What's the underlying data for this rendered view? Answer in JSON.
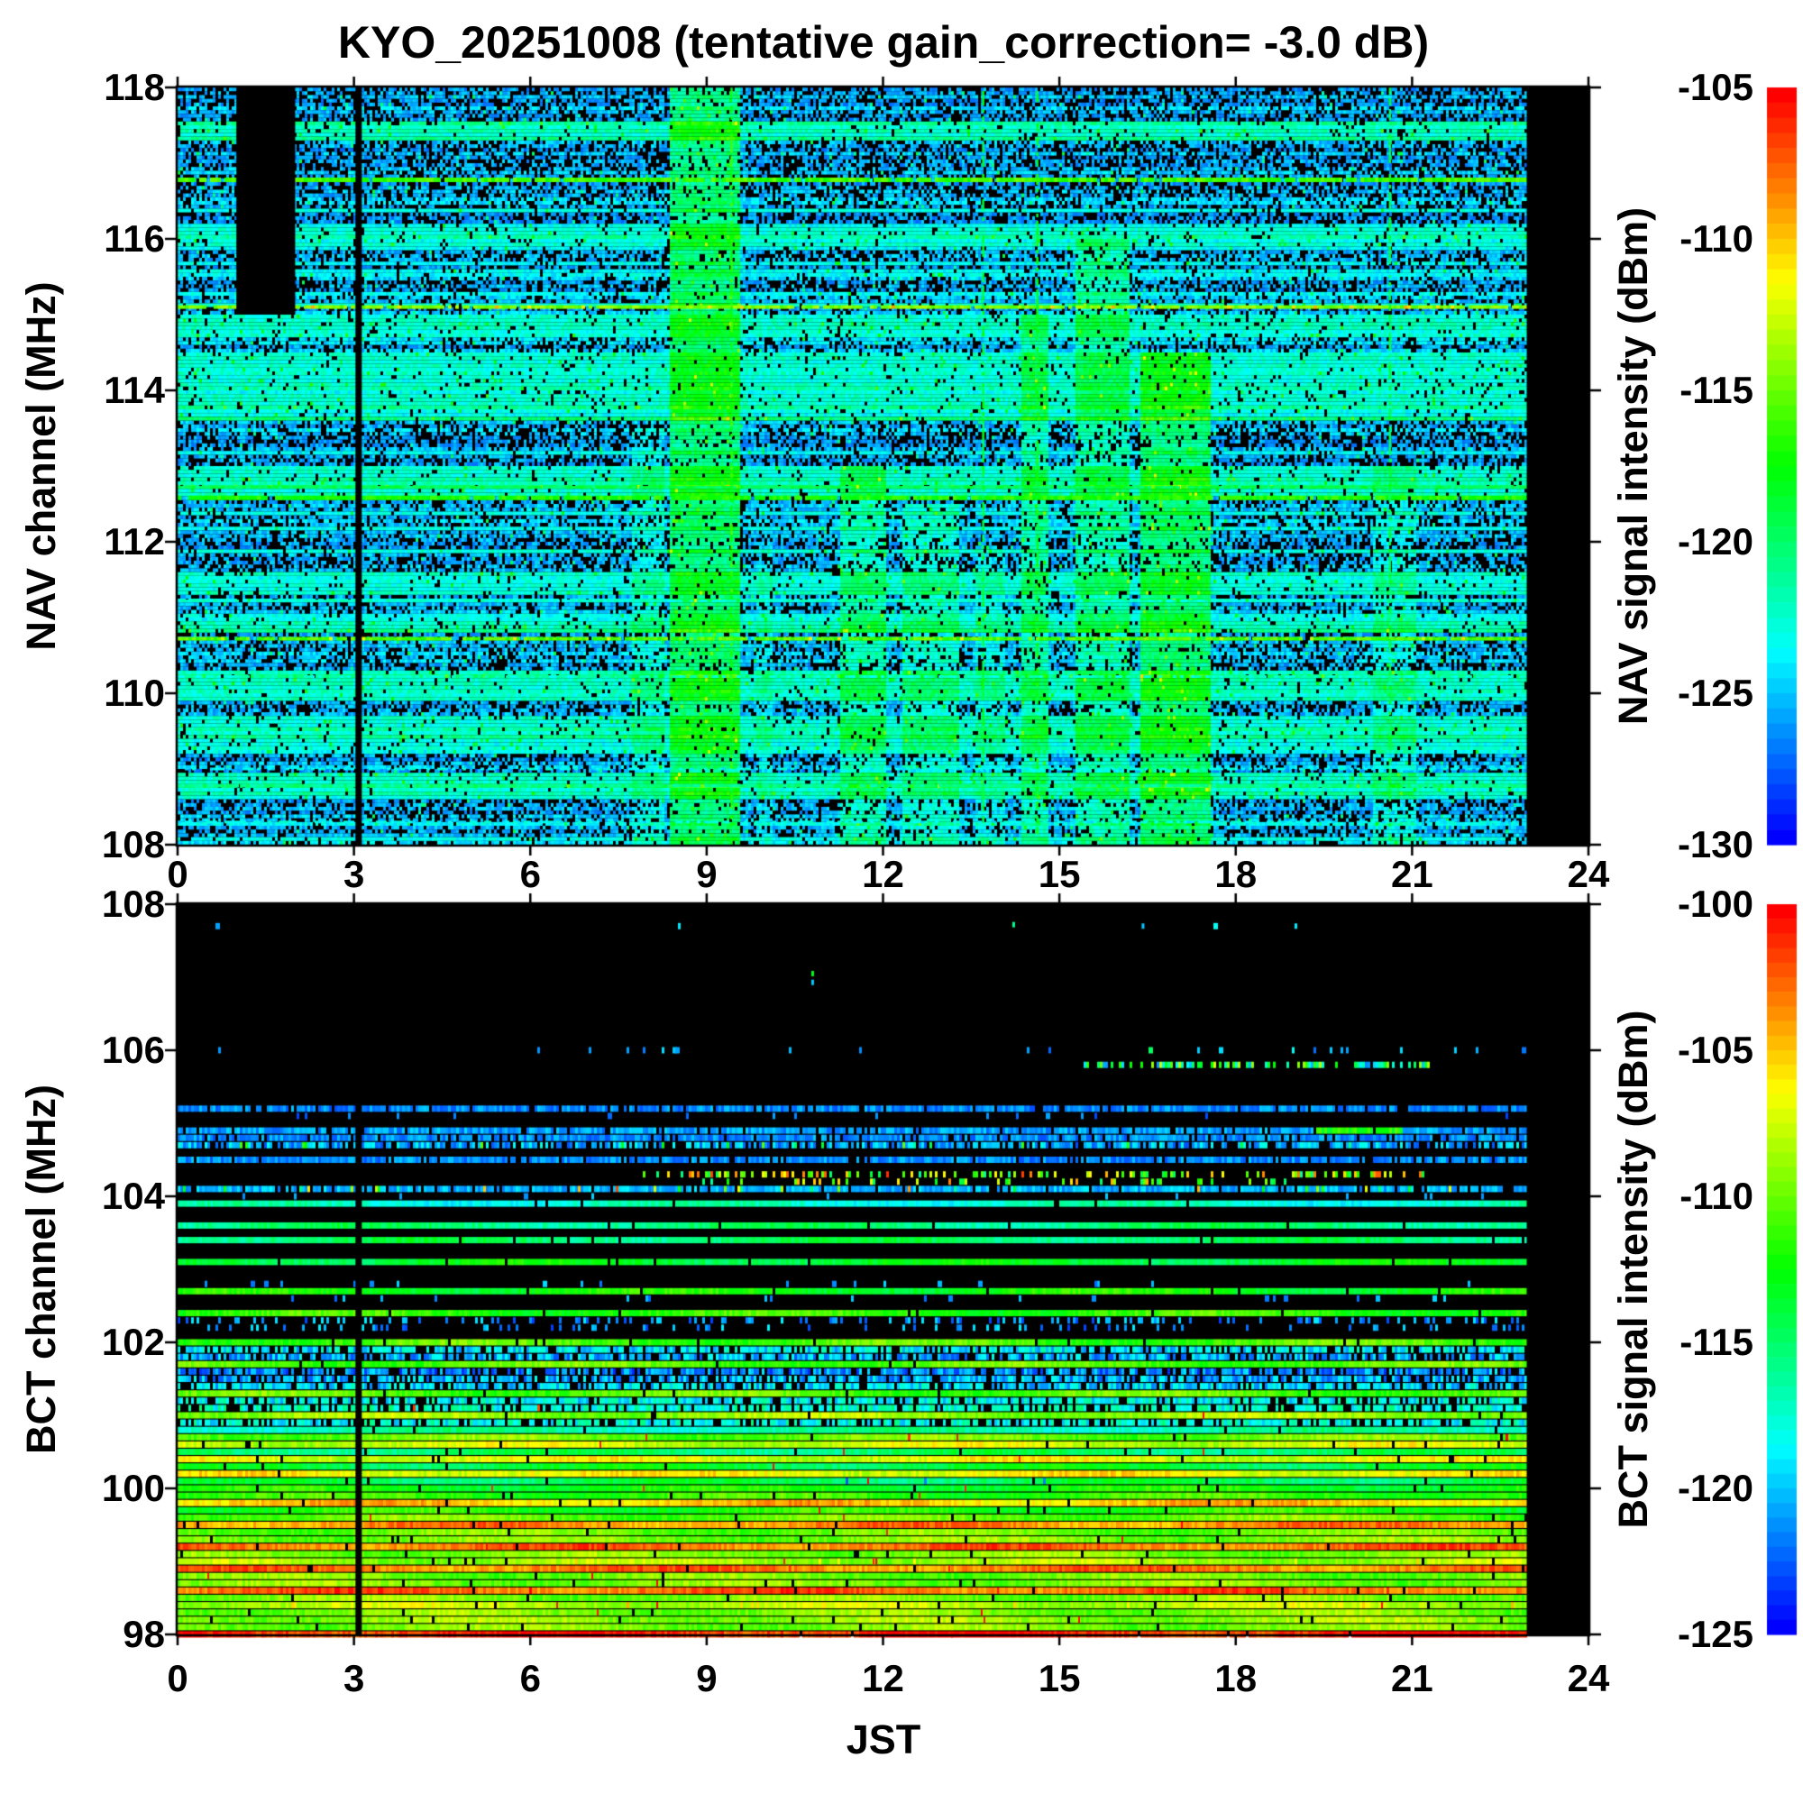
{
  "figure": {
    "title": "KYO_20251008 (tentative gain_correction= -3.0 dB)",
    "background": "#ffffff"
  },
  "chart_data": [
    {
      "type": "heatmap",
      "name": "NAV band spectrogram",
      "title": "KYO_20251008 (tentative gain_correction= -3.0 dB)",
      "xlabel": "",
      "ylabel": "NAV channel (MHz)",
      "x": {
        "min": 0,
        "max": 24,
        "ticks": [
          0,
          3,
          6,
          9,
          12,
          15,
          18,
          21,
          24
        ],
        "tick_labels": [
          "0",
          "3",
          "6",
          "9",
          "12",
          "15",
          "18",
          "21",
          "24"
        ]
      },
      "y": {
        "min": 108,
        "max": 118,
        "ticks": [
          118,
          116,
          114,
          112,
          110,
          108
        ],
        "tick_labels": [
          "118",
          "116",
          "114",
          "112",
          "110",
          "108"
        ]
      },
      "colorbar": {
        "label": "NAV signal intensity (dBm)",
        "max": -105,
        "min": -130,
        "ticks": [
          -105,
          -110,
          -115,
          -120,
          -125,
          -130
        ],
        "tick_labels": [
          "-105",
          "-110",
          "-115",
          "-120",
          "-125",
          "-130"
        ],
        "colormap": "rainbow",
        "high_color": "#ff0000",
        "low_color": "#0000ff"
      },
      "background_noise_dbm": [
        -130,
        -124
      ],
      "data_start_hour": 0,
      "data_end_hour": 22.95,
      "gap_hour": 3.08,
      "black_block": {
        "t0": 1.0,
        "t1": 2.0,
        "f0": 115.0,
        "f1": 118.0
      },
      "bright_lines": [
        {
          "f": 116.78,
          "v": -116.0,
          "h": 5,
          "d": 0.93
        },
        {
          "f": 115.1,
          "v": -114.5,
          "h": 4,
          "d": 0.93,
          "sp": {
            "d": 0.06,
            "vmin": -111,
            "vmax": -109
          }
        },
        {
          "f": 112.72,
          "v": -119.5,
          "h": 3,
          "d": 0.9
        },
        {
          "f": 112.58,
          "v": -117.0,
          "h": 5,
          "d": 0.93
        },
        {
          "f": 111.22,
          "v": -122.5,
          "h": 3,
          "d": 0.7
        },
        {
          "f": 110.72,
          "v": -115.5,
          "h": 4,
          "d": 0.93,
          "sp": {
            "d": 0.05,
            "vmin": -113,
            "vmax": -110
          }
        },
        {
          "f": 110.22,
          "v": -122.5,
          "h": 3,
          "d": 0.7
        },
        {
          "f": 109.0,
          "v": -123.5,
          "h": 3,
          "d": 0.5
        },
        {
          "f": 108.78,
          "v": -121.0,
          "h": 4,
          "d": 0.85
        },
        {
          "f": 108.3,
          "v": -123.5,
          "h": 3,
          "d": 0.5
        }
      ],
      "enhanced_rows": [
        {
          "top": 117.55,
          "bottom": 117.3
        },
        {
          "top": 116.15,
          "bottom": 115.9
        },
        {
          "top": 115.0,
          "bottom": 114.72
        },
        {
          "top": 114.5,
          "bottom": 113.6
        },
        {
          "top": 113.0,
          "bottom": 112.62
        },
        {
          "top": 111.6,
          "bottom": 111.3
        },
        {
          "top": 111.05,
          "bottom": 110.78
        },
        {
          "top": 110.3,
          "bottom": 109.9
        },
        {
          "top": 109.7,
          "bottom": 109.2
        },
        {
          "top": 108.95,
          "bottom": 108.6
        }
      ],
      "vertical_bands": [
        {
          "t0": 7.7,
          "t1": 8.25,
          "m": 1.3,
          "fmax": 113.5
        },
        {
          "t0": 8.35,
          "t1": 9.55,
          "m": 1.8,
          "fmax": 118.0
        },
        {
          "t0": 9.8,
          "t1": 10.1,
          "m": 1.2,
          "fmax": 112.0
        },
        {
          "t0": 11.25,
          "t1": 12.05,
          "m": 1.5,
          "fmax": 113.0
        },
        {
          "t0": 12.3,
          "t1": 13.25,
          "m": 1.4,
          "fmax": 112.5
        },
        {
          "t0": 13.55,
          "t1": 14.05,
          "m": 1.25,
          "fmax": 112.0
        },
        {
          "t0": 14.35,
          "t1": 14.8,
          "m": 1.55,
          "fmax": 115.0
        },
        {
          "t0": 15.25,
          "t1": 16.15,
          "m": 1.55,
          "fmax": 116.0
        },
        {
          "t0": 16.35,
          "t1": 17.55,
          "m": 1.8,
          "fmax": 114.5
        },
        {
          "t0": 20.3,
          "t1": 21.05,
          "m": 1.3,
          "fmax": 113.0
        }
      ],
      "thin_vertical_lines": [
        {
          "t": 9.42,
          "v": -117
        },
        {
          "t": 13.7,
          "v": -119
        },
        {
          "t": 14.62,
          "v": -118
        },
        {
          "t": 20.62,
          "v": -119
        }
      ]
    },
    {
      "type": "heatmap",
      "name": "BCT band spectrogram",
      "xlabel": "JST",
      "ylabel": "BCT channel (MHz)",
      "x": {
        "min": 0,
        "max": 24,
        "ticks": [
          0,
          3,
          6,
          9,
          12,
          15,
          18,
          21,
          24
        ],
        "tick_labels": [
          "0",
          "3",
          "6",
          "9",
          "12",
          "15",
          "18",
          "21",
          "24"
        ]
      },
      "y": {
        "min": 98,
        "max": 108,
        "ticks": [
          108,
          106,
          104,
          102,
          100,
          98
        ],
        "tick_labels": [
          "108",
          "106",
          "104",
          "102",
          "100",
          "98"
        ]
      },
      "colorbar": {
        "label": "BCT signal intensity (dBm)",
        "max": -100,
        "min": -125,
        "ticks": [
          -100,
          -105,
          -110,
          -115,
          -120,
          -125
        ],
        "tick_labels": [
          "-100",
          "-105",
          "-110",
          "-115",
          "-120",
          "-125"
        ],
        "colormap": "rainbow",
        "high_color": "#ff0000",
        "low_color": "#0000ff"
      },
      "data_start_hour": 0,
      "data_end_hour": 22.95,
      "gap_hour": 3.08,
      "rows": [
        {
          "f": 107.7,
          "s": "sparse",
          "d": 0.004,
          "v": -120
        },
        {
          "f": 106.0,
          "s": "sparse",
          "d": 0.045,
          "v": -121,
          "d2": {
            "t0": 15.0,
            "t1": 21.5,
            "d": 0.1,
            "vmin": -122,
            "vmax": -112
          }
        },
        {
          "f": 105.8,
          "s": "dots",
          "range": [
            15.2,
            21.3
          ],
          "d": 0.5,
          "vr": [
            -122,
            -107
          ]
        },
        {
          "f": 105.2,
          "s": "dash",
          "v": -121.5
        },
        {
          "f": 105.1,
          "s": "sparse",
          "d": 0.03,
          "v": -122
        },
        {
          "f": 104.9,
          "s": "dash",
          "v": -121,
          "patch": {
            "t0": 19.3,
            "t1": 20.8,
            "v": -112
          }
        },
        {
          "f": 104.8,
          "s": "dash",
          "v": -121.5
        },
        {
          "f": 104.7,
          "s": "speckle",
          "v": -120.5,
          "sp": {
            "d": 0.05,
            "vmin": -118,
            "vmax": -107
          }
        },
        {
          "f": 104.5,
          "s": "dash",
          "v": -121.5
        },
        {
          "f": 104.3,
          "s": "dots",
          "range": [
            7.8,
            21.2
          ],
          "d": 0.32,
          "vr": [
            -116.5,
            -101
          ]
        },
        {
          "f": 104.2,
          "s": "dots",
          "range": [
            8.5,
            19.5
          ],
          "d": 0.2,
          "vr": [
            -116.5,
            -103
          ]
        },
        {
          "f": 104.1,
          "s": "dash",
          "v": -120.5,
          "sp": {
            "d": 0.07,
            "vmin": -117,
            "vmax": -101
          }
        },
        {
          "f": 104.0,
          "s": "sparse",
          "d": 0.02,
          "v": -120,
          "sp": {
            "d": 0.002,
            "vmin": -104,
            "vmax": -101
          }
        },
        {
          "f": 103.9,
          "s": "solid",
          "v": -117.5
        },
        {
          "f": 103.6,
          "s": "solid",
          "v": -115.5
        },
        {
          "f": 103.4,
          "s": "solid",
          "v": -115.0
        },
        {
          "f": 103.1,
          "s": "solid",
          "v": -113.5
        },
        {
          "f": 102.8,
          "s": "sparse",
          "d": 0.03,
          "v": -121,
          "sp": {
            "d": 0.002,
            "vmin": -103,
            "vmax": -101
          }
        },
        {
          "f": 102.7,
          "s": "solid",
          "v": -112.5
        },
        {
          "f": 102.6,
          "s": "sparse",
          "d": 0.04,
          "v": -121,
          "sp": {
            "d": 0.002,
            "vmin": -103,
            "vmax": -101
          }
        },
        {
          "f": 102.4,
          "s": "solid",
          "v": -111.5
        },
        {
          "f": 102.3,
          "s": "dots",
          "range": [
            0,
            23
          ],
          "d": 0.25,
          "vr": [
            -123.5,
            -119
          ]
        },
        {
          "f": 102.2,
          "s": "dots",
          "range": [
            0,
            23
          ],
          "d": 0.16,
          "vr": [
            -123.5,
            -119
          ]
        },
        {
          "f": 102.0,
          "s": "solid",
          "v": -110.8
        },
        {
          "f": 101.9,
          "s": "speckle",
          "v": -119.0
        },
        {
          "f": 101.8,
          "s": "speckle",
          "v": -120.5
        },
        {
          "f": 101.7,
          "s": "solid",
          "v": -110.5
        },
        {
          "f": 101.6,
          "s": "speckle",
          "v": -121.5
        },
        {
          "f": 101.5,
          "s": "speckle",
          "v": -120.5
        },
        {
          "f": 101.4,
          "s": "speckle",
          "v": -119.5
        },
        {
          "f": 101.3,
          "s": "solid",
          "v": -110.5
        },
        {
          "f": 101.2,
          "s": "speckle",
          "v": -118.5
        },
        {
          "f": 101.1,
          "s": "speckle",
          "v": -117.5,
          "sp": {
            "d": 0.004,
            "vmin": -102,
            "vmax": -100.5
          }
        },
        {
          "f": 101.0,
          "s": "solid",
          "v": -108.8
        },
        {
          "f": 100.9,
          "s": "speckle",
          "v": -118.0
        },
        {
          "f": 100.8,
          "s": "solid",
          "v": -116.5
        },
        {
          "f": 100.7,
          "s": "solid",
          "v": -110.0,
          "sp": {
            "d": 0.006,
            "vmin": -101.5,
            "vmax": -100
          }
        },
        {
          "f": 100.6,
          "s": "solid",
          "v": -107.5
        },
        {
          "f": 100.5,
          "s": "solid",
          "v": -115.0
        },
        {
          "f": 100.4,
          "s": "solid",
          "v": -107.0
        },
        {
          "f": 100.3,
          "s": "solid",
          "v": -113.8
        },
        {
          "f": 100.2,
          "s": "solid",
          "v": -106.5
        },
        {
          "f": 100.1,
          "s": "solid",
          "v": -114.5,
          "sp": {
            "d": 0.012,
            "vmin": -123.5,
            "vmax": -120
          }
        },
        {
          "f": 100.0,
          "s": "solid",
          "v": -112.5
        },
        {
          "f": 99.9,
          "s": "solid",
          "v": -111.5
        },
        {
          "f": 99.8,
          "s": "solid",
          "v": -105.0
        },
        {
          "f": 99.7,
          "s": "solid",
          "v": -112.0
        },
        {
          "f": 99.6,
          "s": "solid",
          "v": -110.0
        },
        {
          "f": 99.5,
          "s": "solid",
          "v": -103.5
        },
        {
          "f": 99.4,
          "s": "solid",
          "v": -110.0
        },
        {
          "f": 99.3,
          "s": "solid",
          "v": -109.5
        },
        {
          "f": 99.2,
          "s": "solid",
          "v": -102.8
        },
        {
          "f": 99.1,
          "s": "solid",
          "v": -109.5
        },
        {
          "f": 99.0,
          "s": "solid",
          "v": -108.5,
          "sp": {
            "d": 0.02,
            "vmin": -107,
            "vmax": -105
          }
        },
        {
          "f": 98.9,
          "s": "solid",
          "v": -103.0
        },
        {
          "f": 98.8,
          "s": "solid",
          "v": -109.8
        },
        {
          "f": 98.7,
          "s": "solid",
          "v": -109.5
        },
        {
          "f": 98.6,
          "s": "solid",
          "v": -102.5,
          "sp": {
            "d": 0.01,
            "vmin": -101,
            "vmax": -100
          }
        },
        {
          "f": 98.5,
          "s": "solid",
          "v": -109.5
        },
        {
          "f": 98.4,
          "s": "solid",
          "v": -108.0,
          "sp": {
            "d": 0.02,
            "vmin": -106,
            "vmax": -104
          }
        },
        {
          "f": 98.3,
          "s": "solid",
          "v": -109.5
        },
        {
          "f": 98.2,
          "s": "solid",
          "v": -109.0
        },
        {
          "f": 98.1,
          "s": "solid",
          "v": -109.5
        },
        {
          "f": 98.0,
          "s": "solid",
          "v": -101.0,
          "sp": {
            "d": 0.05,
            "vmin": -100.5,
            "vmax": -100
          }
        }
      ],
      "point_marks": [
        {
          "t": 10.78,
          "f": 107.05,
          "v": -113
        },
        {
          "t": 10.78,
          "f": 106.93,
          "v": -120
        },
        {
          "t": 16.4,
          "f": 107.7,
          "v": -120
        },
        {
          "t": 19.0,
          "f": 107.7,
          "v": -119
        },
        {
          "t": 14.2,
          "f": 107.72,
          "v": -116
        }
      ]
    }
  ]
}
